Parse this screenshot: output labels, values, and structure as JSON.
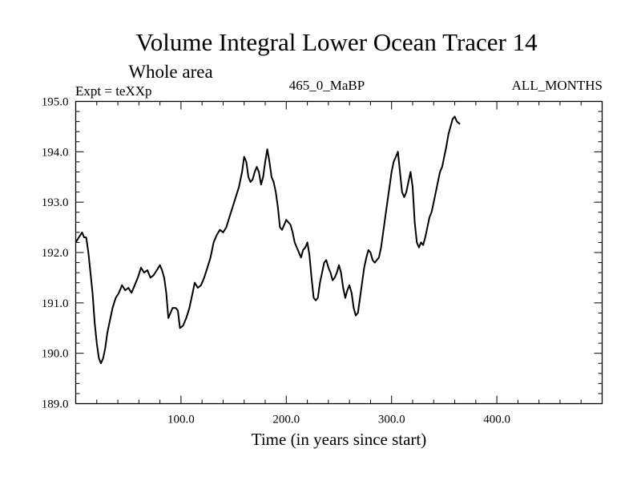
{
  "chart_data": {
    "type": "line",
    "title": "Volume Integral Lower Ocean Tracer 14",
    "subtitle": "Whole area",
    "expt_label": "Expt = teXXp",
    "center_label": "465_0_MaBP",
    "right_label": "ALL_MONTHS",
    "xlabel": "Time (in years since start)",
    "ylabel": "",
    "xlim": [
      0,
      500
    ],
    "ylim": [
      189.0,
      195.0
    ],
    "x_ticks": [
      100,
      200,
      300,
      400
    ],
    "x_tick_labels": [
      "100.0",
      "200.0",
      "300.0",
      "400.0"
    ],
    "y_ticks": [
      189,
      190,
      191,
      192,
      193,
      194,
      195
    ],
    "y_tick_labels": [
      "189.0",
      "190.0",
      "191.0",
      "192.0",
      "193.0",
      "194.0",
      "195.0"
    ],
    "series": [
      {
        "name": "Tracer 14",
        "color": "#000000",
        "points": [
          [
            0,
            192.2
          ],
          [
            3,
            192.3
          ],
          [
            6,
            192.4
          ],
          [
            8,
            192.3
          ],
          [
            10,
            192.3
          ],
          [
            12,
            192.0
          ],
          [
            14,
            191.6
          ],
          [
            16,
            191.2
          ],
          [
            18,
            190.6
          ],
          [
            20,
            190.2
          ],
          [
            22,
            189.9
          ],
          [
            24,
            189.8
          ],
          [
            26,
            189.9
          ],
          [
            28,
            190.1
          ],
          [
            30,
            190.4
          ],
          [
            32,
            190.6
          ],
          [
            35,
            190.9
          ],
          [
            38,
            191.1
          ],
          [
            41,
            191.2
          ],
          [
            44,
            191.35
          ],
          [
            47,
            191.25
          ],
          [
            50,
            191.3
          ],
          [
            53,
            191.2
          ],
          [
            56,
            191.35
          ],
          [
            59,
            191.5
          ],
          [
            62,
            191.7
          ],
          [
            65,
            191.6
          ],
          [
            68,
            191.65
          ],
          [
            71,
            191.5
          ],
          [
            74,
            191.55
          ],
          [
            77,
            191.65
          ],
          [
            80,
            191.75
          ],
          [
            82,
            191.65
          ],
          [
            84,
            191.5
          ],
          [
            86,
            191.2
          ],
          [
            88,
            190.7
          ],
          [
            90,
            190.8
          ],
          [
            92,
            190.9
          ],
          [
            95,
            190.9
          ],
          [
            97,
            190.85
          ],
          [
            99,
            190.5
          ],
          [
            102,
            190.55
          ],
          [
            105,
            190.7
          ],
          [
            108,
            190.9
          ],
          [
            111,
            191.2
          ],
          [
            113,
            191.4
          ],
          [
            116,
            191.3
          ],
          [
            119,
            191.35
          ],
          [
            122,
            191.5
          ],
          [
            125,
            191.7
          ],
          [
            128,
            191.9
          ],
          [
            131,
            192.2
          ],
          [
            134,
            192.35
          ],
          [
            137,
            192.45
          ],
          [
            140,
            192.4
          ],
          [
            143,
            192.5
          ],
          [
            146,
            192.7
          ],
          [
            149,
            192.9
          ],
          [
            152,
            193.1
          ],
          [
            155,
            193.3
          ],
          [
            158,
            193.6
          ],
          [
            160,
            193.9
          ],
          [
            162,
            193.8
          ],
          [
            164,
            193.5
          ],
          [
            166,
            193.4
          ],
          [
            168,
            193.45
          ],
          [
            170,
            193.6
          ],
          [
            172,
            193.7
          ],
          [
            174,
            193.6
          ],
          [
            176,
            193.35
          ],
          [
            178,
            193.5
          ],
          [
            180,
            193.8
          ],
          [
            182,
            194.05
          ],
          [
            184,
            193.8
          ],
          [
            186,
            193.5
          ],
          [
            188,
            193.4
          ],
          [
            190,
            193.2
          ],
          [
            192,
            192.9
          ],
          [
            194,
            192.5
          ],
          [
            196,
            192.45
          ],
          [
            198,
            192.55
          ],
          [
            200,
            192.65
          ],
          [
            202,
            192.6
          ],
          [
            204,
            192.55
          ],
          [
            206,
            192.4
          ],
          [
            208,
            192.2
          ],
          [
            210,
            192.1
          ],
          [
            212,
            192.0
          ],
          [
            214,
            191.9
          ],
          [
            216,
            192.05
          ],
          [
            218,
            192.1
          ],
          [
            220,
            192.2
          ],
          [
            222,
            191.95
          ],
          [
            224,
            191.5
          ],
          [
            226,
            191.1
          ],
          [
            228,
            191.05
          ],
          [
            230,
            191.1
          ],
          [
            232,
            191.4
          ],
          [
            234,
            191.6
          ],
          [
            236,
            191.8
          ],
          [
            238,
            191.85
          ],
          [
            240,
            191.7
          ],
          [
            242,
            191.6
          ],
          [
            244,
            191.45
          ],
          [
            246,
            191.5
          ],
          [
            248,
            191.6
          ],
          [
            250,
            191.75
          ],
          [
            252,
            191.6
          ],
          [
            254,
            191.3
          ],
          [
            256,
            191.1
          ],
          [
            258,
            191.25
          ],
          [
            260,
            191.35
          ],
          [
            262,
            191.2
          ],
          [
            264,
            190.9
          ],
          [
            266,
            190.75
          ],
          [
            268,
            190.8
          ],
          [
            270,
            191.1
          ],
          [
            272,
            191.4
          ],
          [
            274,
            191.7
          ],
          [
            276,
            191.9
          ],
          [
            278,
            192.05
          ],
          [
            280,
            192.0
          ],
          [
            282,
            191.85
          ],
          [
            284,
            191.8
          ],
          [
            286,
            191.85
          ],
          [
            288,
            191.9
          ],
          [
            290,
            192.1
          ],
          [
            292,
            192.4
          ],
          [
            294,
            192.7
          ],
          [
            296,
            193.0
          ],
          [
            298,
            193.3
          ],
          [
            300,
            193.6
          ],
          [
            302,
            193.8
          ],
          [
            304,
            193.9
          ],
          [
            306,
            194.0
          ],
          [
            308,
            193.6
          ],
          [
            310,
            193.2
          ],
          [
            312,
            193.1
          ],
          [
            314,
            193.2
          ],
          [
            316,
            193.4
          ],
          [
            318,
            193.6
          ],
          [
            320,
            193.3
          ],
          [
            322,
            192.6
          ],
          [
            324,
            192.2
          ],
          [
            326,
            192.1
          ],
          [
            328,
            192.2
          ],
          [
            330,
            192.15
          ],
          [
            332,
            192.3
          ],
          [
            334,
            192.5
          ],
          [
            336,
            192.7
          ],
          [
            338,
            192.8
          ],
          [
            340,
            193.0
          ],
          [
            342,
            193.2
          ],
          [
            344,
            193.4
          ],
          [
            346,
            193.6
          ],
          [
            348,
            193.7
          ],
          [
            350,
            193.9
          ],
          [
            352,
            194.1
          ],
          [
            354,
            194.35
          ],
          [
            356,
            194.5
          ],
          [
            358,
            194.65
          ],
          [
            360,
            194.7
          ],
          [
            362,
            194.6
          ],
          [
            365,
            194.55
          ]
        ]
      }
    ]
  }
}
